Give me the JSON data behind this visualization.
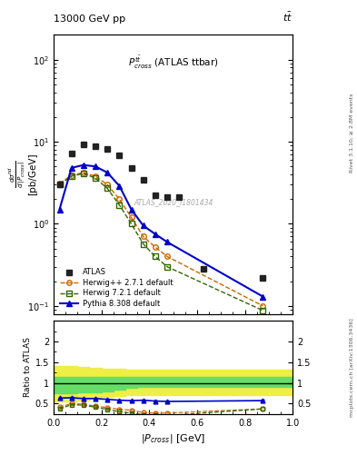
{
  "title_top": "13000 GeV pp",
  "title_top_right": "tt",
  "annotation": "$P^{t\\bar{t}}_{cross}$ (ATLAS ttbar)",
  "watermark": "ATLAS_2020_I1801434",
  "right_label_top": "Rivet 3.1.10, ≥ 2.8M events",
  "right_label_bottom": "mcplots.cern.ch [arXiv:1306.3436]",
  "xlabel": "$|P_{cross}|$ [GeV]",
  "xlim": [
    0.0,
    1.0
  ],
  "ylim_main": [
    0.08,
    200
  ],
  "ylim_ratio": [
    0.25,
    2.5
  ],
  "atlas_x": [
    0.025,
    0.075,
    0.125,
    0.175,
    0.225,
    0.275,
    0.325,
    0.375,
    0.425,
    0.475,
    0.525,
    0.625,
    0.875
  ],
  "atlas_y": [
    3.0,
    7.2,
    9.2,
    8.8,
    8.2,
    6.8,
    4.8,
    3.4,
    2.2,
    2.1,
    2.1,
    0.28,
    0.22
  ],
  "herwig_x": [
    0.025,
    0.075,
    0.125,
    0.175,
    0.225,
    0.275,
    0.325,
    0.375,
    0.425,
    0.475,
    0.875
  ],
  "herwig_y": [
    3.1,
    3.9,
    4.2,
    3.8,
    3.0,
    2.0,
    1.2,
    0.7,
    0.52,
    0.4,
    0.1
  ],
  "herwig7_x": [
    0.025,
    0.075,
    0.125,
    0.175,
    0.225,
    0.275,
    0.325,
    0.375,
    0.425,
    0.475,
    0.875
  ],
  "herwig7_y": [
    3.0,
    3.8,
    4.1,
    3.6,
    2.7,
    1.7,
    1.0,
    0.57,
    0.4,
    0.3,
    0.088
  ],
  "pythia_x": [
    0.025,
    0.075,
    0.125,
    0.175,
    0.225,
    0.275,
    0.325,
    0.375,
    0.425,
    0.475,
    0.875
  ],
  "pythia_y": [
    1.5,
    4.8,
    5.2,
    5.0,
    4.2,
    2.9,
    1.5,
    0.95,
    0.75,
    0.6,
    0.13
  ],
  "herwig_ratio": [
    0.41,
    0.5,
    0.48,
    0.44,
    0.4,
    0.36,
    0.34,
    0.28,
    0.27,
    0.27,
    0.37
  ],
  "herwig7_ratio": [
    0.37,
    0.47,
    0.46,
    0.41,
    0.36,
    0.3,
    0.27,
    0.23,
    0.23,
    0.21,
    0.37
  ],
  "pythia_ratio": [
    0.63,
    0.64,
    0.62,
    0.62,
    0.6,
    0.58,
    0.57,
    0.58,
    0.56,
    0.55,
    0.57
  ],
  "pythia_ratio_err": [
    0.015,
    0.012,
    0.012,
    0.012,
    0.012,
    0.012,
    0.012,
    0.012,
    0.012,
    0.012,
    0.02
  ],
  "band_x": [
    0.0,
    0.05,
    0.1,
    0.15,
    0.2,
    0.25,
    0.3,
    0.35,
    0.4,
    1.0
  ],
  "band_yellow_lo": [
    0.55,
    0.55,
    0.58,
    0.62,
    0.65,
    0.68,
    0.7,
    0.7,
    0.7,
    0.7
  ],
  "band_yellow_hi": [
    1.4,
    1.4,
    1.38,
    1.36,
    1.35,
    1.34,
    1.33,
    1.33,
    1.33,
    1.33
  ],
  "band_green_lo": [
    0.75,
    0.75,
    0.76,
    0.78,
    0.8,
    0.84,
    0.87,
    0.9,
    0.9,
    0.9
  ],
  "band_green_hi": [
    1.15,
    1.15,
    1.15,
    1.15,
    1.15,
    1.15,
    1.15,
    1.15,
    1.15,
    1.15
  ],
  "color_atlas": "#222222",
  "color_herwig": "#cc6600",
  "color_herwig7": "#336600",
  "color_pythia": "#0000cc",
  "color_green_band": "#66dd66",
  "color_yellow_band": "#eeee44"
}
